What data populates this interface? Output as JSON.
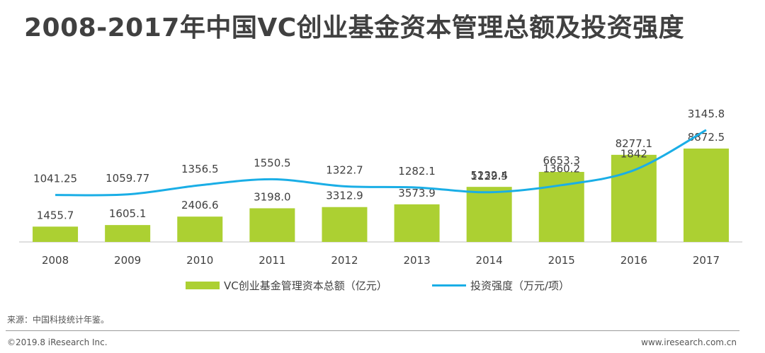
{
  "title": "2008-2017年中国VC创业基金资本管理总额及投资强度",
  "chart_data": {
    "type": "bar",
    "categories": [
      "2008",
      "2009",
      "2010",
      "2011",
      "2012",
      "2013",
      "2014",
      "2015",
      "2016",
      "2017"
    ],
    "series": [
      {
        "name": "VC创业基金管理资本总额（亿元）",
        "type": "bar",
        "color": "#acd032",
        "values": [
          1455.7,
          1605.1,
          2406.6,
          3198.0,
          3312.9,
          3573.9,
          5232.4,
          6653.3,
          8277.1,
          8872.5
        ],
        "labels": [
          "1455.7",
          "1605.1",
          "2406.6",
          "3198.0",
          "3312.9",
          "3573.9",
          "5232.4",
          "6653.3",
          "8277.1",
          "8872.5"
        ]
      },
      {
        "name": "投资强度（万元/项）",
        "type": "line",
        "color": "#1aaee6",
        "values": [
          1041.25,
          1059.77,
          1356.5,
          1550.5,
          1322.7,
          1282.1,
          1129.5,
          1360.2,
          1842,
          3145.8
        ],
        "labels": [
          "1041.25",
          "1059.77",
          "1356.5",
          "1550.5",
          "1322.7",
          "1282.1",
          "1129.5",
          "1360.2",
          "1842",
          "3145.8"
        ]
      }
    ],
    "xlabel": "",
    "ylabel": "",
    "grid": false,
    "legend": "bottom"
  },
  "legend": {
    "bar_label": "VC创业基金管理资本总额（亿元）",
    "line_label": "投资强度（万元/项）"
  },
  "source": "来源：中国科技统计年鉴。",
  "copyright": "©2019.8 iResearch Inc.",
  "website": "www.iresearch.com.cn"
}
